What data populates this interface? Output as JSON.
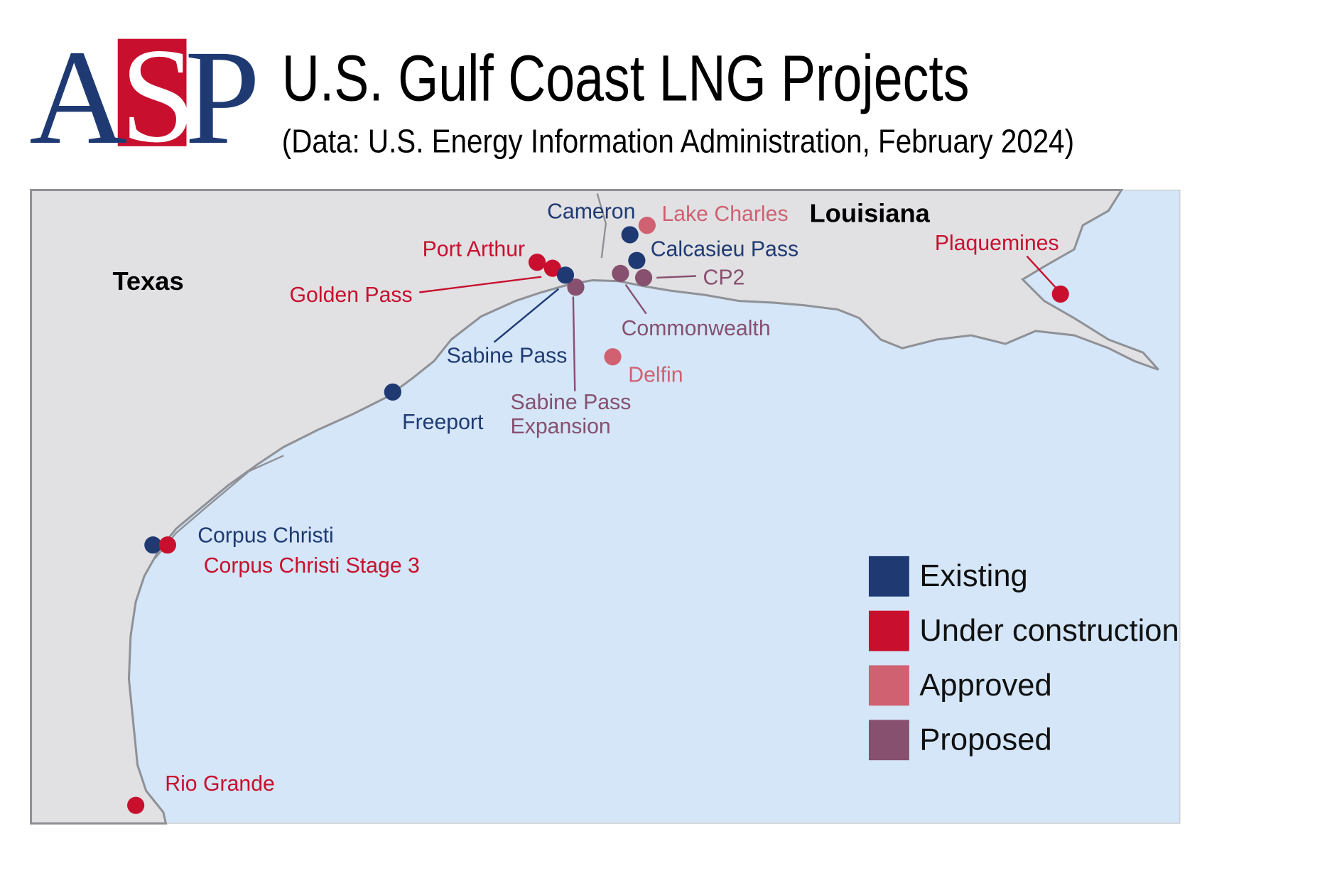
{
  "header": {
    "logo": [
      "A",
      "S",
      "P"
    ],
    "title": "U.S. Gulf Coast LNG Projects",
    "subtitle": "(Data: U.S. Energy Information Administration, February 2024)"
  },
  "map": {
    "regions": [
      "Texas",
      "Louisiana"
    ],
    "legend": [
      {
        "label": "Existing",
        "color": "#1f3a73",
        "projects": [
          "Cameron",
          "Calcasieu Pass",
          "Sabine Pass",
          "Freeport",
          "Corpus Christi"
        ]
      },
      {
        "label": "Under construction",
        "color": "#c8102e",
        "projects": [
          "Port Arthur",
          "Golden Pass",
          "Corpus Christi Stage 3",
          "Rio Grande",
          "Plaquemines"
        ]
      },
      {
        "label": "Approved",
        "color": "#cf6171",
        "projects": [
          "Lake Charles",
          "Delfin"
        ]
      },
      {
        "label": "Proposed",
        "color": "#87506f",
        "projects": [
          [
            "Sabine Pass",
            "Expansion"
          ],
          "Commonwealth",
          "CP2"
        ]
      }
    ]
  }
}
